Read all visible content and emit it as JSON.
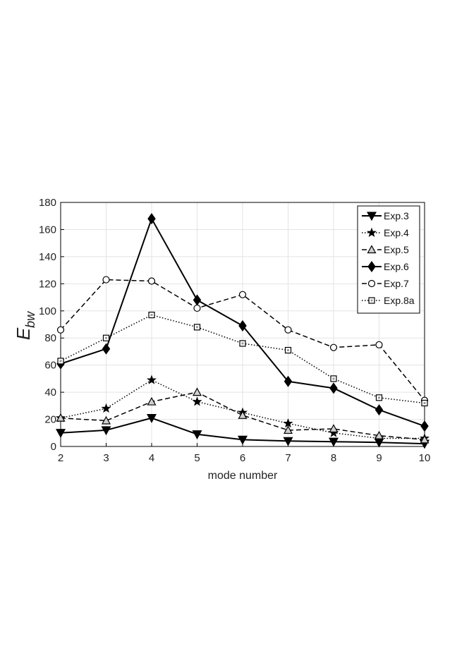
{
  "chart_data": {
    "type": "line",
    "xlabel": "mode number",
    "ylabel_main": "E",
    "ylabel_sub": "bw",
    "x": [
      2,
      3,
      4,
      5,
      6,
      7,
      8,
      9,
      10
    ],
    "xlim": [
      2,
      10
    ],
    "ylim": [
      0,
      180
    ],
    "xticks": [
      2,
      3,
      4,
      5,
      6,
      7,
      8,
      9,
      10
    ],
    "yticks": [
      0,
      20,
      40,
      60,
      80,
      100,
      120,
      140,
      160,
      180
    ],
    "grid": true,
    "legend_position": "top-right",
    "series": [
      {
        "name": "Exp.3",
        "marker": "triangle-down",
        "line": "solid",
        "width": 2,
        "values": [
          10,
          12,
          21,
          9,
          5,
          4,
          3.5,
          3,
          2
        ]
      },
      {
        "name": "Exp.4",
        "marker": "star",
        "line": "dotted",
        "width": 1.5,
        "values": [
          21,
          28,
          49,
          33,
          25,
          17,
          10,
          6,
          6
        ]
      },
      {
        "name": "Exp.5",
        "marker": "triangle-up",
        "line": "dashed",
        "width": 1.5,
        "values": [
          21,
          19,
          33,
          40,
          23,
          12,
          13,
          8,
          5
        ]
      },
      {
        "name": "Exp.6",
        "marker": "diamond",
        "line": "solid",
        "width": 2,
        "values": [
          61,
          72,
          168,
          108,
          89,
          48,
          43,
          27,
          15
        ]
      },
      {
        "name": "Exp.7",
        "marker": "circle",
        "line": "dashed",
        "width": 1.5,
        "values": [
          86,
          123,
          122,
          102,
          112,
          86,
          73,
          75,
          34
        ]
      },
      {
        "name": "Exp.8a",
        "marker": "square",
        "line": "dotted",
        "width": 1.5,
        "values": [
          63,
          80,
          97,
          88,
          76,
          71,
          50,
          36,
          32
        ]
      }
    ]
  }
}
